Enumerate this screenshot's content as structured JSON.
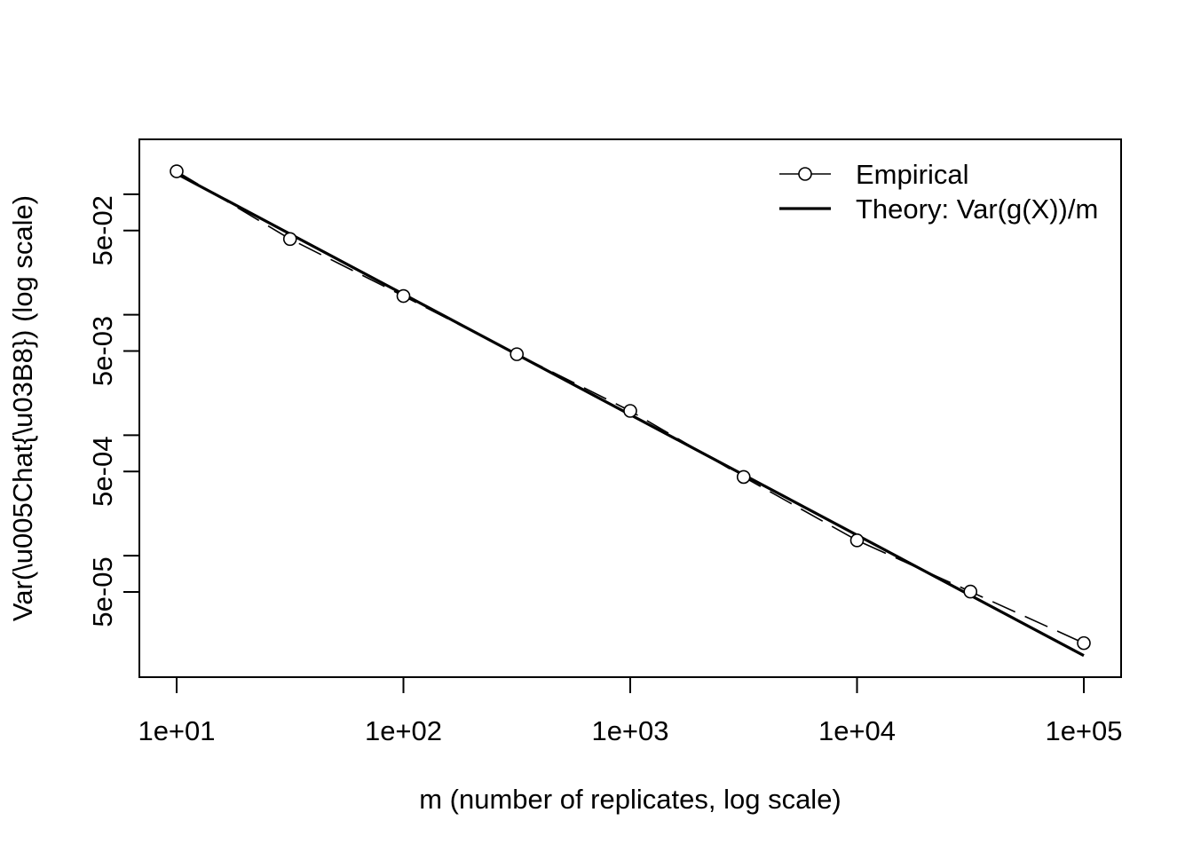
{
  "chart_data": {
    "type": "line",
    "title": "",
    "xlabel": "m (number of replicates, log scale)",
    "ylabel": "Var(\\u005Chat{\\u03B8}) (log scale)",
    "x_scale": "log",
    "y_scale": "log",
    "xlim": [
      10,
      100000
    ],
    "ylim": [
      1.4e-05,
      0.2
    ],
    "x_ticks": [
      10,
      100,
      1000,
      10000,
      100000
    ],
    "x_tick_labels": [
      "1e+01",
      "1e+02",
      "1e+03",
      "1e+04",
      "1e+05"
    ],
    "y_ticks": [
      1e-05,
      5e-05,
      0.0001,
      0.0005,
      0.001,
      0.005,
      0.01,
      0.05,
      0.1
    ],
    "y_tick_labels": [
      "",
      "5e-05",
      "",
      "5e-04",
      "",
      "5e-03",
      "",
      "5e-02",
      ""
    ],
    "grid": false,
    "legend_position": "top-right",
    "series": [
      {
        "name": "Empirical",
        "style": "dashed-with-circles",
        "color": "#000000",
        "x": [
          10,
          31.62,
          100,
          316.2,
          1000,
          3162,
          10000,
          31620,
          100000
        ],
        "y": [
          0.155,
          0.0425,
          0.0143,
          0.0047,
          0.00159,
          0.00045,
          0.000134,
          5.03e-05,
          1.88e-05
        ]
      },
      {
        "name": "Theory: Var(g(X))/m",
        "style": "solid",
        "color": "#000000",
        "x": [
          10,
          100000
        ],
        "y": [
          0.148,
          1.48e-05
        ]
      }
    ]
  }
}
